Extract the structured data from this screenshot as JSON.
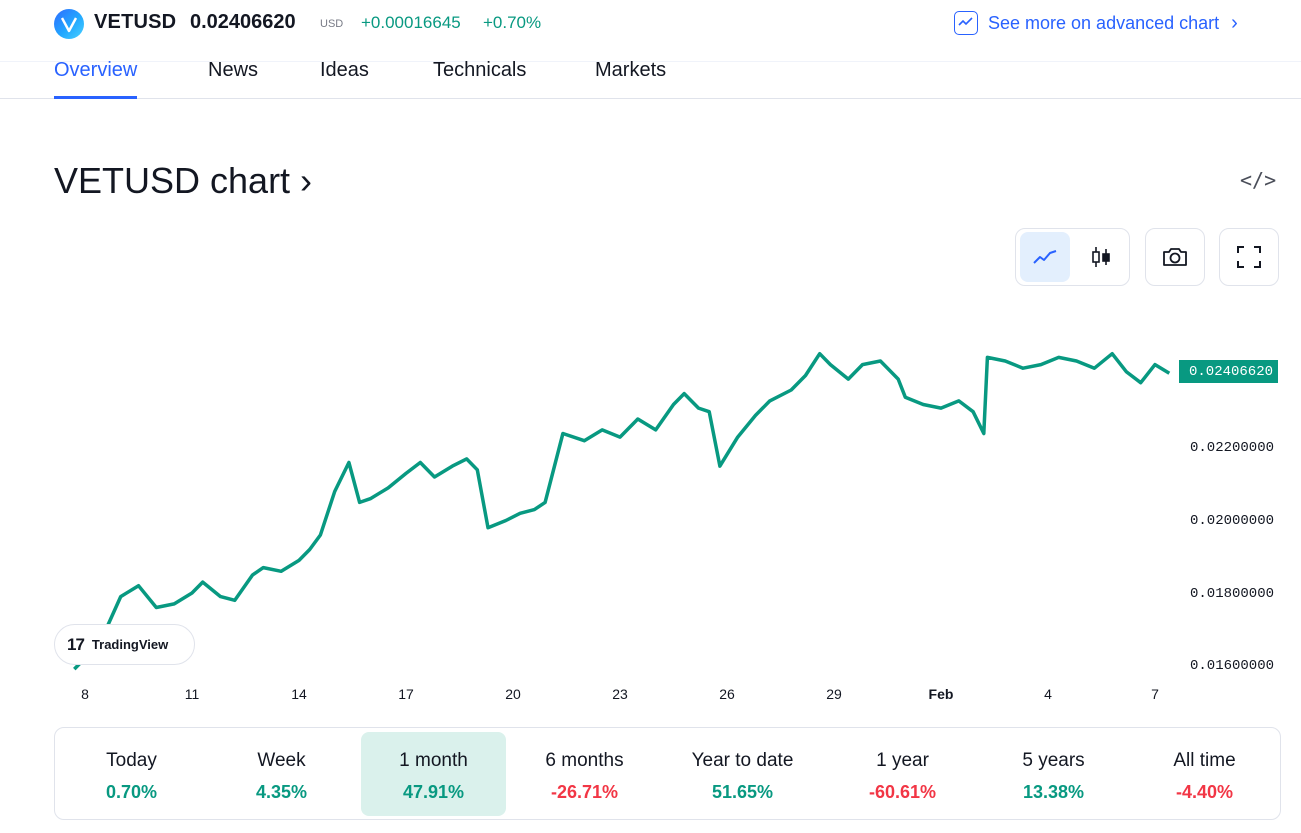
{
  "header": {
    "symbol": "VETUSD",
    "price": "0.02406620",
    "currency": "USD",
    "change": "+0.00016645",
    "change_percent": "+0.70%",
    "advanced_chart_link": "See more on advanced chart"
  },
  "tabs": [
    {
      "label": "Overview",
      "active": true
    },
    {
      "label": "News",
      "active": false
    },
    {
      "label": "Ideas",
      "active": false
    },
    {
      "label": "Technicals",
      "active": false
    },
    {
      "label": "Markets",
      "active": false
    }
  ],
  "chart_section": {
    "title": "VETUSD chart ›",
    "embed_icon": "code-icon",
    "toolbar": [
      "line-chart-icon",
      "candlestick-icon",
      "camera-icon",
      "fullscreen-icon"
    ],
    "watermark": "TradingView"
  },
  "chart_data": {
    "type": "line",
    "line_color": "#089981",
    "last_value_label": "0.02406620",
    "y_ticks": [
      "0.02200000",
      "0.02000000",
      "0.01800000",
      "0.01600000"
    ],
    "ylim": [
      0.0156,
      0.0255
    ],
    "x_ticks": [
      "8",
      "11",
      "14",
      "17",
      "20",
      "23",
      "26",
      "29",
      "Feb",
      "4",
      "7"
    ],
    "x": [
      7.7,
      8.2,
      8.5,
      9.0,
      9.5,
      10.0,
      10.5,
      11.0,
      11.3,
      11.8,
      12.2,
      12.7,
      13.0,
      13.5,
      14.0,
      14.3,
      14.6,
      15.0,
      15.4,
      15.7,
      16.0,
      16.5,
      17.0,
      17.4,
      17.8,
      18.3,
      18.7,
      19.0,
      19.3,
      19.8,
      20.2,
      20.6,
      20.9,
      21.4,
      22.0,
      22.5,
      23.0,
      23.5,
      24.0,
      24.5,
      24.8,
      25.2,
      25.5,
      25.8,
      26.3,
      26.8,
      27.2,
      27.8,
      28.2,
      28.6,
      28.9,
      29.4,
      29.8,
      30.3,
      30.8,
      31.0,
      31.5,
      32.0,
      32.5,
      32.9,
      33.2,
      33.3,
      33.8,
      34.3,
      34.8,
      35.3,
      35.8,
      36.3,
      36.8,
      37.2,
      37.6,
      38.0,
      38.4
    ],
    "y": [
      0.0159,
      0.0164,
      0.0168,
      0.0179,
      0.0182,
      0.0176,
      0.0177,
      0.018,
      0.0183,
      0.0179,
      0.0178,
      0.0185,
      0.0187,
      0.0186,
      0.0189,
      0.0192,
      0.0196,
      0.0208,
      0.0216,
      0.0205,
      0.0206,
      0.0209,
      0.0213,
      0.0216,
      0.0212,
      0.0215,
      0.0217,
      0.0214,
      0.0198,
      0.02,
      0.0202,
      0.0203,
      0.0205,
      0.0224,
      0.0222,
      0.0225,
      0.0223,
      0.0228,
      0.0225,
      0.0232,
      0.0235,
      0.0231,
      0.023,
      0.0215,
      0.0223,
      0.0229,
      0.0233,
      0.0236,
      0.024,
      0.0246,
      0.0243,
      0.0239,
      0.0243,
      0.0244,
      0.0239,
      0.0234,
      0.0232,
      0.0231,
      0.0233,
      0.023,
      0.0224,
      0.0245,
      0.0244,
      0.0242,
      0.0243,
      0.0245,
      0.0244,
      0.0242,
      0.0246,
      0.0241,
      0.0238,
      0.0243,
      0.02406
    ]
  },
  "performance": [
    {
      "label": "Today",
      "value": "0.70%",
      "sign": "pos",
      "selected": false
    },
    {
      "label": "Week",
      "value": "4.35%",
      "sign": "pos",
      "selected": false
    },
    {
      "label": "1 month",
      "value": "47.91%",
      "sign": "pos",
      "selected": true
    },
    {
      "label": "6 months",
      "value": "-26.71%",
      "sign": "neg",
      "selected": false
    },
    {
      "label": "Year to date",
      "value": "51.65%",
      "sign": "pos",
      "selected": false
    },
    {
      "label": "1 year",
      "value": "-60.61%",
      "sign": "neg",
      "selected": false
    },
    {
      "label": "5 years",
      "value": "13.38%",
      "sign": "pos",
      "selected": false
    },
    {
      "label": "All time",
      "value": "-4.40%",
      "sign": "neg",
      "selected": false
    }
  ]
}
